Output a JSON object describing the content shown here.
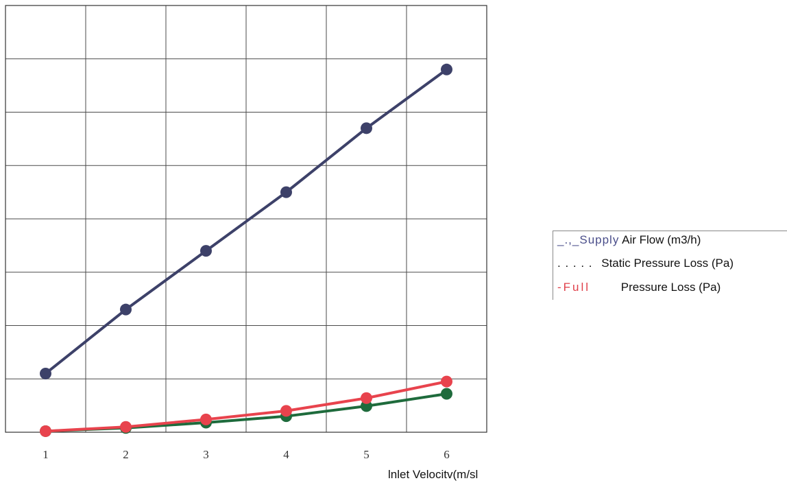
{
  "chart_data": {
    "type": "line",
    "x": [
      1,
      2,
      3,
      4,
      5,
      6
    ],
    "x_tick_labels": [
      "1",
      "2",
      "3",
      "4",
      "5",
      "6"
    ],
    "xlabel": "lnlet  Velocitv(m/sl",
    "ylabel": "",
    "ylim": [
      0,
      8
    ],
    "grid": true,
    "legend_position": "right",
    "series": [
      {
        "name": "Supply Air Flow (m3/h)",
        "legend_prefix": "_.,_Supply",
        "legend_text": "Air Flow (m3/h)",
        "color": "#3d4169",
        "values": [
          1.1,
          2.3,
          3.4,
          4.5,
          5.7,
          6.8
        ]
      },
      {
        "name": "Static Pressure Loss (Pa)",
        "legend_prefix": ". . . . .",
        "legend_text": "Static Pressure Loss (Pa)",
        "color": "#1e6b3c",
        "values": [
          0.02,
          0.08,
          0.18,
          0.3,
          0.49,
          0.72
        ]
      },
      {
        "name": "Full Pressure Loss (Pa)",
        "legend_prefix": "-Full",
        "legend_text": "Pressure Loss (Pa)",
        "color": "#e8434d",
        "values": [
          0.02,
          0.1,
          0.24,
          0.4,
          0.64,
          0.95
        ]
      }
    ]
  }
}
